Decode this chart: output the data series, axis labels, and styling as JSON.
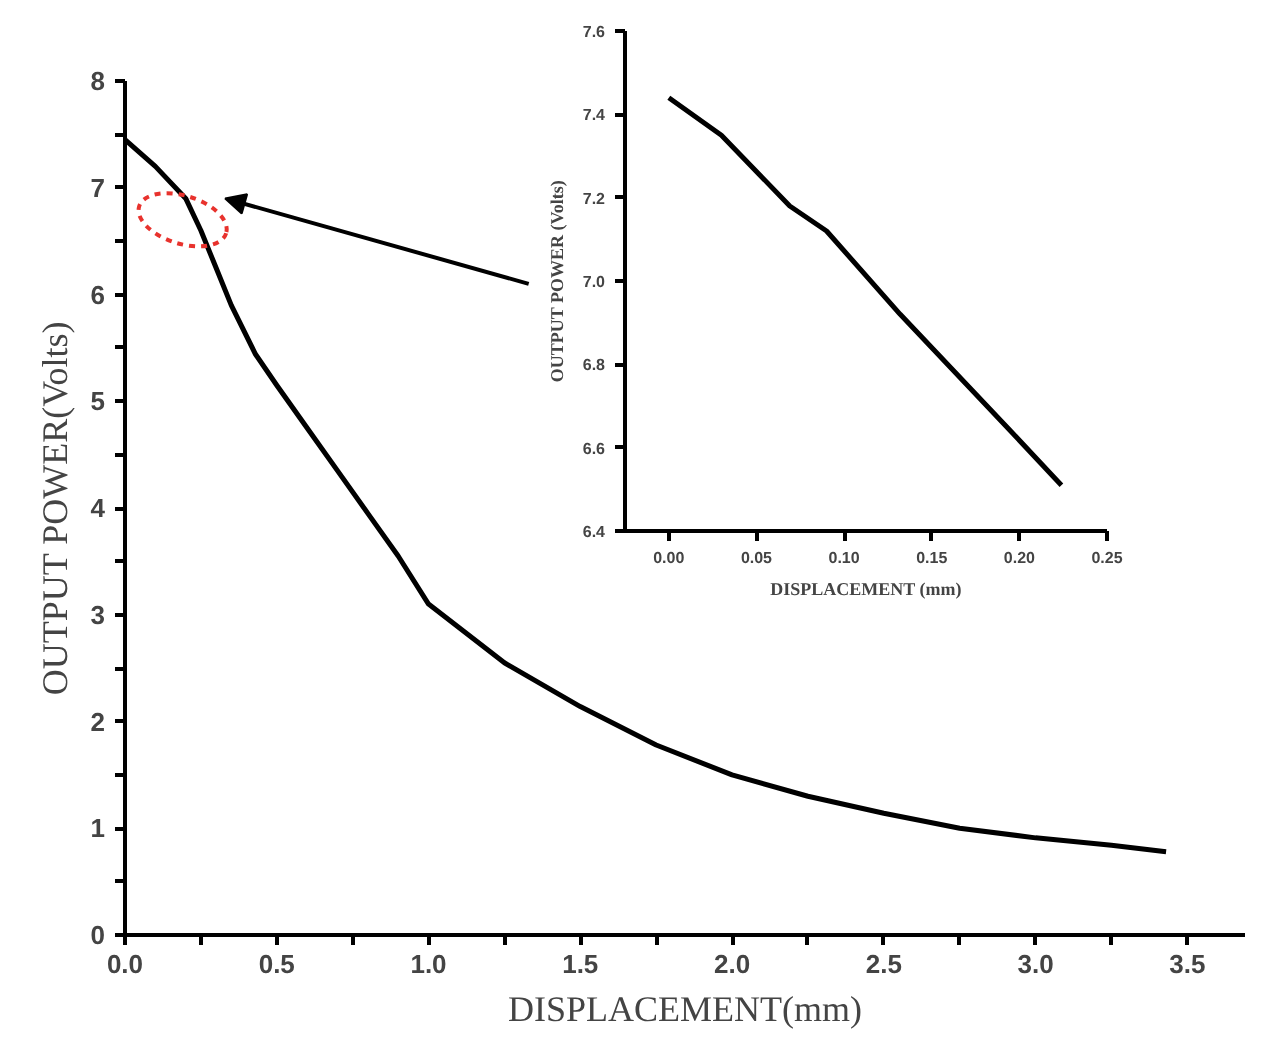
{
  "chart_data": [
    {
      "type": "line",
      "xlabel": "DISPLACEMENT(mm)",
      "ylabel": "OUTPUT POWER(Volts)",
      "series": [
        {
          "color": "#000000",
          "x": [
            0,
            0.1,
            0.2,
            0.25,
            0.3,
            0.35,
            0.43,
            0.5,
            0.6,
            0.7,
            0.8,
            0.9,
            1.0,
            1.25,
            1.5,
            1.75,
            2.0,
            2.25,
            2.5,
            2.75,
            3.0,
            3.25,
            3.43
          ],
          "values": [
            7.45,
            7.2,
            6.9,
            6.6,
            6.25,
            5.9,
            5.44,
            5.15,
            4.75,
            4.35,
            3.95,
            3.55,
            3.1,
            2.55,
            2.14,
            1.78,
            1.5,
            1.3,
            1.14,
            1.0,
            0.91,
            0.84,
            0.78
          ]
        }
      ],
      "xlim": [
        0,
        3.69
      ],
      "ylim": [
        0,
        8
      ],
      "xticks": [
        {
          "value": 0,
          "label": "0.0"
        },
        {
          "value": 0.25,
          "label": null
        },
        0.5,
        {
          "value": 0.75,
          "label": null
        },
        {
          "value": 1,
          "label": "1.0"
        },
        {
          "value": 1.25,
          "label": null
        },
        1.5,
        {
          "value": 1.75,
          "label": null
        },
        {
          "value": 2,
          "label": "2.0"
        },
        {
          "value": 2.25,
          "label": null
        },
        2.5,
        {
          "value": 2.75,
          "label": null
        },
        {
          "value": 3,
          "label": "3.0"
        },
        {
          "value": 3.25,
          "label": null
        },
        3.5
      ],
      "yticks": [
        0,
        {
          "value": 0.5,
          "label": null
        },
        1,
        {
          "value": 1.5,
          "label": null
        },
        2,
        {
          "value": 2.5,
          "label": null
        },
        3,
        {
          "value": 3.5,
          "label": null
        },
        4,
        {
          "value": 4.5,
          "label": null
        },
        5,
        {
          "value": 5.5,
          "label": null
        },
        6,
        {
          "value": 6.5,
          "label": null
        },
        7,
        {
          "value": 7.5,
          "label": null
        },
        8
      ],
      "grid": false,
      "line_style": "solid"
    },
    {
      "type": "line",
      "xlabel": "DISPLACEMENT (mm)",
      "ylabel": "OUTPUT POWER (Volts)",
      "series": [
        {
          "color": "#000000",
          "x": [
            0,
            0.03,
            0.069,
            0.09,
            0.132,
            0.195,
            0.224
          ],
          "values": [
            7.44,
            7.35,
            7.18,
            7.12,
            6.92,
            6.64,
            6.51
          ]
        }
      ],
      "xlim": [
        -0.025,
        0.25
      ],
      "ylim": [
        6.4,
        7.6
      ],
      "xticks": [
        {
          "value": 0,
          "label": "0.00"
        },
        0.05,
        {
          "value": 0.1,
          "label": "0.10"
        },
        0.15,
        {
          "value": 0.2,
          "label": "0.20"
        },
        0.25
      ],
      "yticks": [
        6.4,
        6.6,
        6.8,
        {
          "value": 7.0,
          "label": "7.0"
        },
        7.2,
        7.4,
        7.6
      ],
      "grid": false,
      "line_style": "solid"
    }
  ]
}
